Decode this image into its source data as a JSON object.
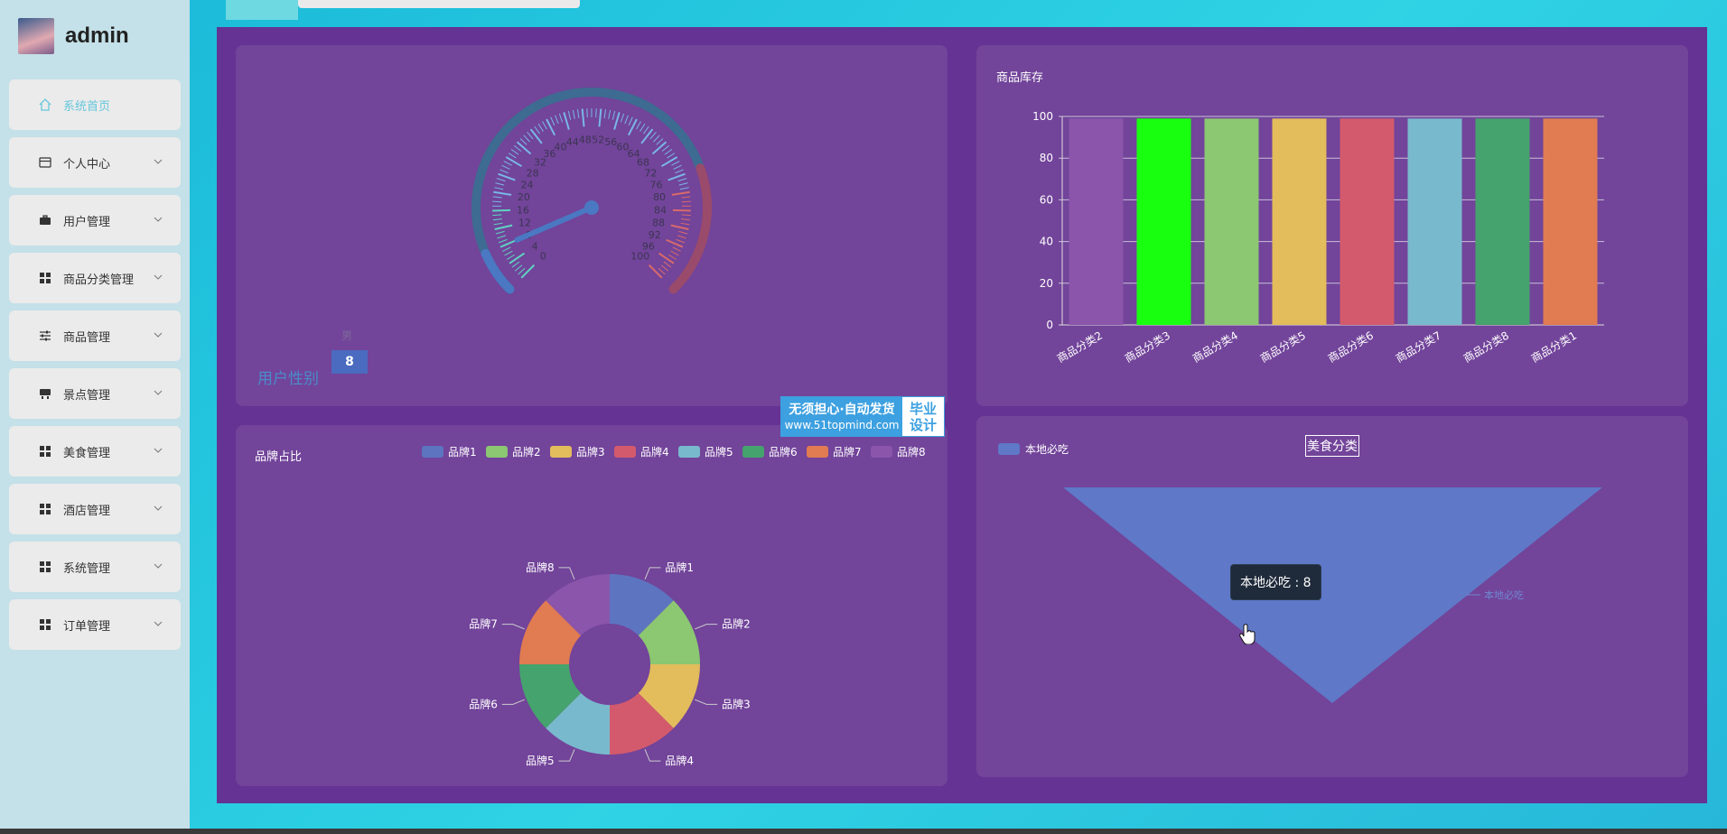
{
  "header": {
    "username": "admin"
  },
  "sidebar": {
    "items": [
      {
        "label": "系统首页",
        "icon": "home-icon",
        "active": true
      },
      {
        "label": "个人中心",
        "icon": "card-icon"
      },
      {
        "label": "用户管理",
        "icon": "briefcase-icon"
      },
      {
        "label": "商品分类管理",
        "icon": "grid-icon"
      },
      {
        "label": "商品管理",
        "icon": "sliders-icon"
      },
      {
        "label": "景点管理",
        "icon": "landmark-icon"
      },
      {
        "label": "美食管理",
        "icon": "grid-icon"
      },
      {
        "label": "酒店管理",
        "icon": "grid-icon"
      },
      {
        "label": "系统管理",
        "icon": "grid-icon"
      },
      {
        "label": "订单管理",
        "icon": "grid-icon"
      }
    ]
  },
  "watermark": {
    "line1": "无须担心·自动发货",
    "line2": "www.51topmind.com",
    "right": "毕业设计"
  },
  "tooltip": {
    "text": "本地必吃 : 8"
  },
  "colors": {
    "accent": "#66c7dc",
    "main_bg": "#643393",
    "panel_bg": "#72449a"
  },
  "chart_data": [
    {
      "type": "gauge",
      "title": "用户性别",
      "detail_name": "男",
      "value": 8,
      "range": [
        0,
        100
      ],
      "tick_labels": [
        "0",
        "4",
        "8",
        "12",
        "16",
        "20",
        "24",
        "28",
        "32",
        "36",
        "40",
        "44",
        "48",
        "52",
        "56",
        "60",
        "64",
        "68",
        "72",
        "76",
        "80",
        "84",
        "88",
        "92",
        "96",
        "100"
      ]
    },
    {
      "type": "bar",
      "title": "商品库存",
      "categories": [
        "商品分类2",
        "商品分类3",
        "商品分类4",
        "商品分类5",
        "商品分类6",
        "商品分类7",
        "商品分类8",
        "商品分类1"
      ],
      "values": [
        99,
        99,
        99,
        99,
        99,
        99,
        99,
        99
      ],
      "colors": [
        "#8a55ab",
        "#19ff10",
        "#8cc771",
        "#e3bc5c",
        "#d35a6c",
        "#79b9cd",
        "#45a36d",
        "#e07b52"
      ],
      "ylim": [
        0,
        100
      ],
      "yticks": [
        0,
        20,
        40,
        60,
        80,
        100
      ],
      "grid": true
    },
    {
      "type": "pie",
      "title": "品牌占比",
      "legend_position": "top-right",
      "labels": [
        "品牌1",
        "品牌2",
        "品牌3",
        "品牌4",
        "品牌5",
        "品牌6",
        "品牌7",
        "品牌8"
      ],
      "values": [
        1,
        1,
        1,
        1,
        1,
        1,
        1,
        1
      ],
      "colors": [
        "#5d74c1",
        "#8cc771",
        "#e3bc5c",
        "#d35a6c",
        "#79b9cd",
        "#45a36d",
        "#e07b52",
        "#8a55ab"
      ]
    },
    {
      "type": "funnel",
      "title": "美食分类",
      "legend_position": "top-left",
      "labels": [
        "本地必吃"
      ],
      "values": [
        8
      ],
      "colors": [
        "#5f78c8"
      ]
    }
  ]
}
